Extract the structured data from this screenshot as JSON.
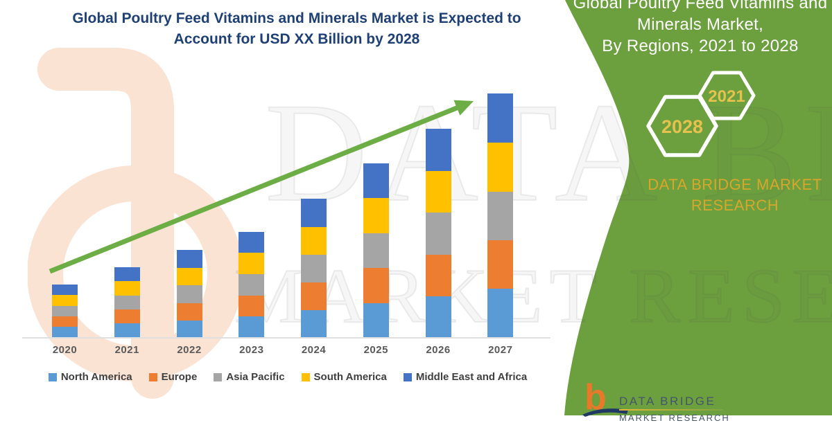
{
  "main_title": {
    "lines": [
      "Global Poultry Feed Vitamins and Minerals Market is Expected to",
      "Account for USD XX Billion by 2028"
    ]
  },
  "chart_data": {
    "type": "bar",
    "stacked": true,
    "title": "Global Poultry Feed Vitamins and Minerals Market is Expected to Account for USD XX Billion by 2028",
    "categories": [
      "2020",
      "2021",
      "2022",
      "2023",
      "2024",
      "2025",
      "2026",
      "2027"
    ],
    "series": [
      {
        "name": "North America",
        "color": "#5B9BD5",
        "values": [
          16,
          21,
          25,
          31,
          40,
          50,
          60,
          71
        ]
      },
      {
        "name": "Europe",
        "color": "#ED7D31",
        "values": [
          15,
          20,
          25,
          30,
          40,
          51,
          60,
          70
        ]
      },
      {
        "name": "Asia Pacific",
        "color": "#A5A5A5",
        "values": [
          15,
          20,
          26,
          31,
          40,
          50,
          61,
          70
        ]
      },
      {
        "name": "South America",
        "color": "#FFC000",
        "values": [
          16,
          21,
          25,
          31,
          40,
          51,
          60,
          71
        ]
      },
      {
        "name": "Middle East and Africa",
        "color": "#4472C4",
        "values": [
          15,
          20,
          26,
          30,
          41,
          50,
          61,
          71
        ]
      }
    ],
    "totals": [
      77,
      102,
      127,
      153,
      201,
      252,
      302,
      353
    ],
    "xlabel": "",
    "ylabel": "",
    "ylim": [
      0,
      380
    ],
    "grid": false,
    "value_axis_shown": false,
    "legend_position": "bottom",
    "trend_arrow": "up-right"
  },
  "right_panel": {
    "title_lines": [
      "Global Poultry Feed Vitamins and",
      "Minerals Market,",
      "By Regions, 2021 to 2028"
    ],
    "hexagon_years": {
      "front": "2028",
      "back": "2021"
    },
    "brand_lines": [
      "DATA BRIDGE MARKET",
      "RESEARCH"
    ]
  },
  "watermark": {
    "line1": "DATA BRIDGE",
    "line2": "MARKET RESEARCH"
  },
  "footer_logo": {
    "b_glyph": "b",
    "name": "DATA BRIDGE",
    "subname": "MARKET RESEARCH"
  },
  "colors": {
    "title_navy": "#1E4077",
    "arrow_green": "#6CAE45",
    "panel_green": "#6CA03E",
    "panel_title_white": "#FFFFFF",
    "gold_brand": "#D9A62B",
    "gold_year": "#E6C14E",
    "axis_label_gray": "#595959",
    "legend_text": "#3F3F3F",
    "axis_line_gray": "#E0E0E0",
    "logo_orange": "#E8782A",
    "logo_slate": "#44546A",
    "logo_swoosh_navy": "#1F3864",
    "watermark_peach": "#FAE3D3"
  }
}
